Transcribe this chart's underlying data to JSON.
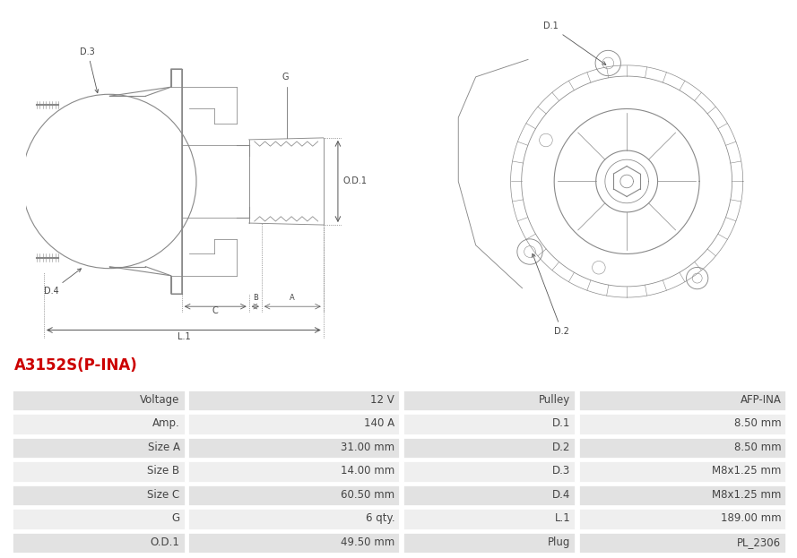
{
  "title": "A3152S(P-INA)",
  "title_color": "#cc0000",
  "background_color": "#ffffff",
  "table_row_bg1": "#e2e2e2",
  "table_row_bg2": "#efefef",
  "table_border_color": "#ffffff",
  "line_color": "#888888",
  "dim_color": "#555555",
  "text_color": "#444444",
  "rows": [
    [
      "Voltage",
      "12 V",
      "Pulley",
      "AFP-INA"
    ],
    [
      "Amp.",
      "140 A",
      "D.1",
      "8.50 mm"
    ],
    [
      "Size A",
      "31.00 mm",
      "D.2",
      "8.50 mm"
    ],
    [
      "Size B",
      "14.00 mm",
      "D.3",
      "M8x1.25 mm"
    ],
    [
      "Size C",
      "60.50 mm",
      "D.4",
      "M8x1.25 mm"
    ],
    [
      "G",
      "6 qty.",
      "L.1",
      "189.00 mm"
    ],
    [
      "O.D.1",
      "49.50 mm",
      "Plug",
      "PL_2306"
    ]
  ],
  "font_size_title": 12,
  "font_size_table": 8.5,
  "font_size_label": 7
}
